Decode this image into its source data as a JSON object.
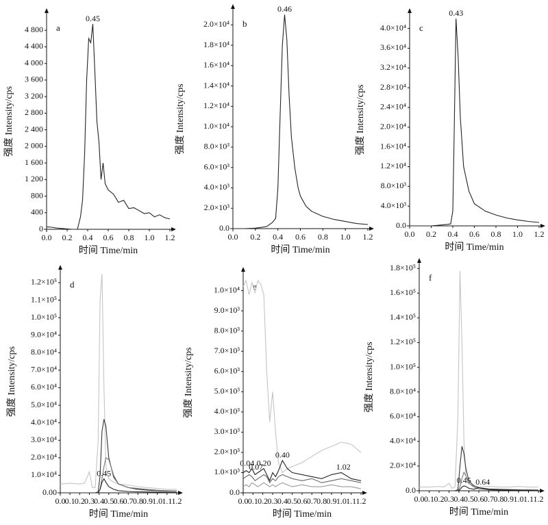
{
  "chart_data": [
    {
      "type": "line",
      "panel_label": "a",
      "xlabel": "时间  Time/min",
      "ylabel": "强度 Intensity/cps",
      "x": [
        0,
        0.05,
        0.1,
        0.15,
        0.2,
        0.25,
        0.3,
        0.33,
        0.35,
        0.37,
        0.39,
        0.41,
        0.43,
        0.45,
        0.47,
        0.49,
        0.51,
        0.53,
        0.55,
        0.57,
        0.6,
        0.65,
        0.7,
        0.75,
        0.8,
        0.85,
        0.9,
        0.95,
        1.0,
        1.05,
        1.1,
        1.15,
        1.2
      ],
      "series": [
        {
          "color": "#222222",
          "values": [
            60,
            50,
            30,
            20,
            10,
            0,
            0,
            300,
            700,
            1800,
            3600,
            4600,
            4500,
            4950,
            3800,
            2600,
            2100,
            1200,
            1600,
            1100,
            950,
            850,
            650,
            700,
            500,
            520,
            450,
            380,
            400,
            300,
            350,
            280,
            250
          ]
        }
      ],
      "annotations": [
        {
          "text": "0.45",
          "x": 0.45,
          "y": 4950
        }
      ],
      "xlim": [
        0,
        1.2
      ],
      "ylim": [
        0,
        5200
      ],
      "xticks": [
        {
          "value": 0,
          "label": "0.0"
        },
        0.2,
        0.4,
        0.6,
        0.8,
        {
          "value": 1,
          "label": "1.0"
        },
        1.2
      ],
      "yticks": [
        0,
        400,
        800,
        {
          "value": 1200,
          "label": "1 200"
        },
        {
          "value": 1600,
          "label": "1 600"
        },
        {
          "value": 2000,
          "label": "2 000"
        },
        {
          "value": 2400,
          "label": "2 400"
        },
        {
          "value": 2800,
          "label": "2 800"
        },
        {
          "value": 3200,
          "label": "3 200"
        },
        {
          "value": 3600,
          "label": "3 600"
        },
        {
          "value": 4000,
          "label": "4 000"
        },
        {
          "value": 4400,
          "label": "4 400"
        },
        {
          "value": 4800,
          "label": "4 800"
        }
      ]
    },
    {
      "type": "line",
      "panel_label": "b",
      "xlabel": "时间  Time/min",
      "ylabel": "强度 Intensity/cps",
      "x": [
        0,
        0.1,
        0.2,
        0.3,
        0.35,
        0.38,
        0.4,
        0.42,
        0.44,
        0.46,
        0.48,
        0.5,
        0.52,
        0.55,
        0.58,
        0.6,
        0.65,
        0.7,
        0.8,
        0.9,
        1.0,
        1.1,
        1.2
      ],
      "series": [
        {
          "color": "#222222",
          "values": [
            0,
            0,
            50,
            200,
            600,
            1000,
            4000,
            11000,
            18000,
            21000,
            18500,
            13000,
            9000,
            6000,
            4000,
            3200,
            2200,
            1700,
            1200,
            900,
            700,
            500,
            400
          ]
        }
      ],
      "annotations": [
        {
          "text": "0.46",
          "x": 0.46,
          "y": 21000
        }
      ],
      "xlim": [
        0,
        1.2
      ],
      "ylim": [
        0,
        21500
      ],
      "xticks": [
        {
          "value": 0,
          "label": "0.0"
        },
        0.2,
        0.4,
        0.6,
        0.8,
        {
          "value": 1,
          "label": "1.0"
        },
        1.2
      ],
      "yticks": [
        {
          "value": 0,
          "label": "0.0"
        },
        {
          "value": 2000,
          "label": "2.0×10³"
        },
        {
          "value": 4000,
          "label": "4.0×10³"
        },
        {
          "value": 6000,
          "label": "6.0×10³"
        },
        {
          "value": 8000,
          "label": "8.0×10³"
        },
        {
          "value": 10000,
          "label": "1.0×10⁴"
        },
        {
          "value": 12000,
          "label": "1.2×10⁴"
        },
        {
          "value": 14000,
          "label": "1.4×10⁴"
        },
        {
          "value": 16000,
          "label": "1.6×10⁴"
        },
        {
          "value": 18000,
          "label": "1.8×10⁴"
        },
        {
          "value": 20000,
          "label": "2.0×10⁴"
        }
      ]
    },
    {
      "type": "line",
      "panel_label": "c",
      "xlabel": "时间  Time/min",
      "ylabel": "强度 Intensity/cps",
      "x": [
        0,
        0.1,
        0.2,
        0.3,
        0.35,
        0.38,
        0.4,
        0.41,
        0.43,
        0.45,
        0.47,
        0.5,
        0.55,
        0.6,
        0.7,
        0.8,
        0.9,
        1.0,
        1.1,
        1.2
      ],
      "series": [
        {
          "color": "#222222",
          "values": [
            0,
            0,
            0,
            200,
            300,
            400,
            3000,
            15000,
            42000,
            34000,
            22000,
            12000,
            7000,
            4500,
            3000,
            2200,
            1600,
            1200,
            900,
            700
          ]
        }
      ],
      "annotations": [
        {
          "text": "0.43",
          "x": 0.43,
          "y": 42000
        }
      ],
      "xlim": [
        0,
        1.2
      ],
      "ylim": [
        0,
        43000
      ],
      "xticks": [
        {
          "value": 0,
          "label": "0.0"
        },
        0.2,
        0.4,
        0.6,
        0.8,
        {
          "value": 1,
          "label": "1.0"
        },
        1.2
      ],
      "yticks": [
        {
          "value": 0,
          "label": "0.0"
        },
        {
          "value": 4000,
          "label": "4.0×10³"
        },
        {
          "value": 8000,
          "label": "8.0×10³"
        },
        {
          "value": 12000,
          "label": "1.2×10⁴"
        },
        {
          "value": 16000,
          "label": "1.6×10⁴"
        },
        {
          "value": 20000,
          "label": "2.0×10⁴"
        },
        {
          "value": 24000,
          "label": "2.4×10⁴"
        },
        {
          "value": 28000,
          "label": "2.8×10⁴"
        },
        {
          "value": 32000,
          "label": "3.2×10⁴"
        },
        {
          "value": 36000,
          "label": "3.6×10⁴"
        },
        {
          "value": 40000,
          "label": "4.0×10⁴"
        }
      ]
    },
    {
      "type": "line",
      "panel_label": "d",
      "xlabel": "时间  Time/min",
      "ylabel": "强度 Intensity/cps",
      "x": [
        0,
        0.1,
        0.2,
        0.25,
        0.3,
        0.33,
        0.36,
        0.39,
        0.41,
        0.43,
        0.45,
        0.47,
        0.5,
        0.55,
        0.6,
        0.7,
        0.8,
        0.9,
        1.0,
        1.1,
        1.2
      ],
      "series": [
        {
          "color": "#c4c4c4",
          "values": [
            5000,
            5500,
            5000,
            5500,
            12000,
            3000,
            3000,
            30000,
            110000,
            125000,
            60000,
            15000,
            8000,
            6000,
            5000,
            4500,
            3500,
            3000,
            2500,
            2000,
            2000
          ]
        },
        {
          "color": "#333333",
          "values": [
            0,
            0,
            0,
            0,
            0,
            0,
            0,
            500,
            10000,
            35000,
            42000,
            38000,
            20000,
            9000,
            5000,
            3000,
            2000,
            1500,
            1200,
            1000,
            1000
          ]
        },
        {
          "color": "#777777",
          "values": [
            0,
            0,
            0,
            0,
            0,
            0,
            0,
            0,
            2000,
            8000,
            15000,
            20000,
            19000,
            10000,
            5000,
            3000,
            2500,
            2000,
            1500,
            1200,
            1000
          ]
        },
        {
          "color": "#222222",
          "values": [
            0,
            0,
            0,
            0,
            0,
            0,
            0,
            0,
            2000,
            6000,
            8000,
            6000,
            3500,
            2000,
            1200,
            800,
            600,
            500,
            400,
            300,
            300
          ]
        }
      ],
      "annotations": [
        {
          "text": "0.45",
          "x": 0.45,
          "y": 8000
        }
      ],
      "xlim": [
        0,
        1.2
      ],
      "ylim": [
        0,
        127000
      ],
      "xticks": [
        {
          "value": 0,
          "label": "0.0"
        },
        0.1,
        0.2,
        0.3,
        0.4,
        0.5,
        0.6,
        0.7,
        0.8,
        0.9,
        {
          "value": 1,
          "label": "1.0"
        },
        1.1,
        1.2
      ],
      "yticks": [
        {
          "value": 0,
          "label": "0.00"
        },
        {
          "value": 10000,
          "label": "1.0×10⁴"
        },
        {
          "value": 20000,
          "label": "2.0×10⁴"
        },
        {
          "value": 30000,
          "label": "3.0×10⁴"
        },
        {
          "value": 40000,
          "label": "4.0×10⁴"
        },
        {
          "value": 50000,
          "label": "5.0×10⁴"
        },
        {
          "value": 60000,
          "label": "6.0×10⁴"
        },
        {
          "value": 70000,
          "label": "7.0×10⁴"
        },
        {
          "value": 80000,
          "label": "8.0×10⁴"
        },
        {
          "value": 90000,
          "label": "9.0×10⁴"
        },
        {
          "value": 100000,
          "label": "1.0×10⁵"
        },
        {
          "value": 110000,
          "label": "1.1×10⁵"
        },
        {
          "value": 120000,
          "label": "1.2×10⁵"
        }
      ]
    },
    {
      "type": "line",
      "panel_label": "e",
      "xlabel": "时间  Time/min",
      "ylabel": "强度 Intensity/cps",
      "x": [
        0,
        0.03,
        0.06,
        0.09,
        0.12,
        0.15,
        0.18,
        0.21,
        0.24,
        0.27,
        0.3,
        0.33,
        0.36,
        0.4,
        0.45,
        0.5,
        0.6,
        0.7,
        0.8,
        0.9,
        1.0,
        1.1,
        1.2
      ],
      "series": [
        {
          "color": "#c4c4c4",
          "values": [
            10200,
            10500,
            9800,
            10400,
            9900,
            10500,
            10300,
            9800,
            6000,
            3500,
            5000,
            3000,
            1500,
            1000,
            1200,
            1300,
            1500,
            1800,
            2100,
            2300,
            2500,
            2400,
            2000
          ]
        },
        {
          "color": "#222222",
          "values": [
            1000,
            1100,
            1000,
            1200,
            900,
            1000,
            1100,
            1200,
            900,
            600,
            1000,
            800,
            1100,
            1600,
            1200,
            1000,
            900,
            800,
            700,
            900,
            1000,
            700,
            600
          ]
        },
        {
          "color": "#666666",
          "values": [
            700,
            800,
            900,
            800,
            600,
            700,
            800,
            900,
            800,
            500,
            700,
            600,
            800,
            900,
            800,
            700,
            600,
            700,
            500,
            600,
            700,
            600,
            500
          ]
        },
        {
          "color": "#999999",
          "values": [
            300,
            400,
            300,
            500,
            400,
            300,
            400,
            500,
            400,
            300,
            400,
            300,
            400,
            500,
            400,
            300,
            400,
            300,
            300,
            400,
            300,
            300,
            200
          ]
        }
      ],
      "annotations": [
        {
          "text": "0.04",
          "x": 0.04,
          "y": 1200
        },
        {
          "text": "0.07",
          "x": 0.13,
          "y": 1000
        },
        {
          "text": "0.20",
          "x": 0.21,
          "y": 1200
        },
        {
          "text": "0.40",
          "x": 0.4,
          "y": 1600
        },
        {
          "text": "1.02",
          "x": 1.02,
          "y": 1000
        }
      ],
      "xlim": [
        0,
        1.2
      ],
      "ylim": [
        0,
        10900
      ],
      "xticks": [
        {
          "value": 0,
          "label": "0.0"
        },
        0.1,
        0.2,
        0.3,
        0.4,
        0.5,
        0.6,
        0.7,
        0.8,
        0.9,
        {
          "value": 1,
          "label": "1.0"
        },
        1.1,
        1.2
      ],
      "yticks": [
        {
          "value": 0,
          "label": "0.0"
        },
        {
          "value": 1000,
          "label": "1.0×10³"
        },
        {
          "value": 2000,
          "label": "2.0×10³"
        },
        {
          "value": 3000,
          "label": "3.0×10³"
        },
        {
          "value": 4000,
          "label": "4.0×10³"
        },
        {
          "value": 5000,
          "label": "5.0×10³"
        },
        {
          "value": 6000,
          "label": "6.0×10³"
        },
        {
          "value": 7000,
          "label": "7.0×10³"
        },
        {
          "value": 8000,
          "label": "8.0×10³"
        },
        {
          "value": 9000,
          "label": "9.0×10³"
        },
        {
          "value": 10000,
          "label": "1.0×10⁴"
        }
      ]
    },
    {
      "type": "line",
      "panel_label": "f",
      "xlabel": "时间  Time/min",
      "ylabel": "强度 Intensity/cps",
      "x": [
        0,
        0.1,
        0.2,
        0.25,
        0.3,
        0.33,
        0.36,
        0.39,
        0.41,
        0.43,
        0.45,
        0.47,
        0.5,
        0.55,
        0.6,
        0.7,
        0.8,
        0.9,
        1.0,
        1.1,
        1.2
      ],
      "series": [
        {
          "color": "#c4c4c4",
          "values": [
            3000,
            3000,
            3500,
            3000,
            6000,
            2000,
            3000,
            60000,
            178000,
            120000,
            40000,
            12000,
            6000,
            4000,
            3000,
            3500,
            3000,
            3000,
            3500,
            3000,
            3000
          ]
        },
        {
          "color": "#333333",
          "values": [
            0,
            0,
            0,
            0,
            0,
            0,
            0,
            1000,
            20000,
            36000,
            30000,
            18000,
            8000,
            4000,
            2500,
            1500,
            1200,
            1000,
            800,
            700,
            600
          ]
        },
        {
          "color": "#777777",
          "values": [
            0,
            0,
            0,
            0,
            0,
            0,
            0,
            0,
            3000,
            10000,
            15000,
            12000,
            6000,
            3000,
            1500,
            1000,
            800,
            600,
            500,
            400,
            400
          ]
        },
        {
          "color": "#222222",
          "values": [
            0,
            0,
            0,
            0,
            0,
            0,
            0,
            0,
            1000,
            3000,
            4000,
            3500,
            2000,
            1200,
            2500,
            800,
            600,
            500,
            400,
            300,
            300
          ]
        }
      ],
      "annotations": [
        {
          "text": "0.45",
          "x": 0.45,
          "y": 4000
        },
        {
          "text": "0.64",
          "x": 0.64,
          "y": 2500
        }
      ],
      "xlim": [
        0,
        1.2
      ],
      "ylim": [
        0,
        184000
      ],
      "xticks": [
        {
          "value": 0,
          "label": "0.0"
        },
        0.1,
        0.2,
        0.3,
        0.4,
        0.5,
        0.6,
        0.7,
        0.8,
        0.9,
        {
          "value": 1,
          "label": "1.0"
        },
        1.1,
        1.2
      ],
      "yticks": [
        {
          "value": 0,
          "label": "0.0"
        },
        {
          "value": 20000,
          "label": "2.0×10⁴"
        },
        {
          "value": 40000,
          "label": "4.0×10⁴"
        },
        {
          "value": 60000,
          "label": "6.0×10⁴"
        },
        {
          "value": 80000,
          "label": "8.0×10⁴"
        },
        {
          "value": 100000,
          "label": "1.0×10⁵"
        },
        {
          "value": 120000,
          "label": "1.2×10⁵"
        },
        {
          "value": 140000,
          "label": "1.4×10⁵"
        },
        {
          "value": 160000,
          "label": "1.6×10⁵"
        },
        {
          "value": 180000,
          "label": "1.8×10⁵"
        }
      ]
    }
  ]
}
